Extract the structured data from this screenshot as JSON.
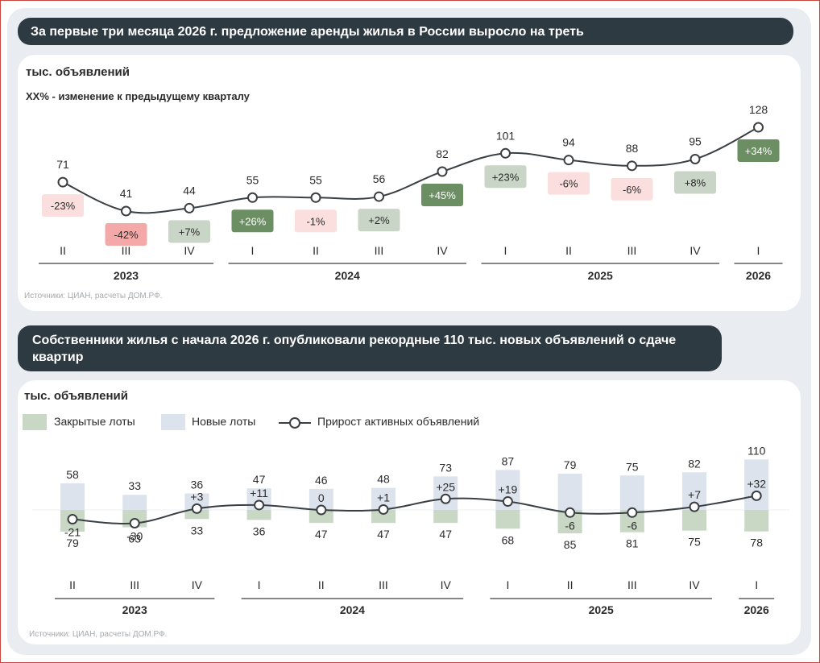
{
  "colors": {
    "line": "#3a3f43",
    "pos_strong": "#6b8f63",
    "pos_light": "#c9d5c6",
    "neg_strong": "#f4a9a8",
    "neg_light": "#fbdede",
    "closed": "#c8d8c4",
    "new": "#dce3ec",
    "banner": "#2e3a42"
  },
  "chart1": {
    "banner": "За первые три месяца 2026 г. предложение аренды жилья в России выросло на треть",
    "unit": "тыс. объявлений",
    "note": "XX% - изменение к предыдущему кварталу",
    "source": "Источники: ЦИАН, расчеты ДОМ.РФ."
  },
  "chart2": {
    "banner": "Собственники жилья с начала 2026 г. опубликовали рекордные 110 тыс. новых объявлений о сдаче квартир",
    "unit": "тыс. объявлений",
    "source": "Источники: ЦИАН, расчеты ДОМ.РФ.",
    "legend": {
      "closed": "Закрытые лоты",
      "new": "Новые лоты",
      "growth": "Прирост активных объявлений"
    }
  },
  "chart_data": [
    {
      "type": "line",
      "title": "За первые три месяца 2026 г. предложение аренды жилья в России выросло на треть",
      "ylabel": "тыс. объявлений",
      "categories": [
        "II",
        "III",
        "IV",
        "I",
        "II",
        "III",
        "IV",
        "I",
        "II",
        "III",
        "IV",
        "I"
      ],
      "year_groups": [
        {
          "label": "2023",
          "from": 0,
          "to": 2
        },
        {
          "label": "2024",
          "from": 3,
          "to": 6
        },
        {
          "label": "2025",
          "from": 7,
          "to": 10
        },
        {
          "label": "2026",
          "from": 11,
          "to": 11
        }
      ],
      "values": [
        71,
        41,
        44,
        55,
        55,
        56,
        82,
        101,
        94,
        88,
        95,
        128
      ],
      "changes": [
        "-23%",
        "-42%",
        "+7%",
        "+26%",
        "-1%",
        "+2%",
        "+45%",
        "+23%",
        "-6%",
        "-6%",
        "+8%",
        "+34%"
      ],
      "change_intensity": [
        "light",
        "strong",
        "light",
        "strong",
        "light",
        "light",
        "strong",
        "light",
        "light",
        "light",
        "light",
        "strong"
      ],
      "ylim": [
        0,
        140
      ]
    },
    {
      "type": "bar",
      "title": "Собственники жилья с начала 2026 г. опубликовали рекордные 110 тыс. новых объявлений о сдаче квартир",
      "ylabel": "тыс. объявлений",
      "categories": [
        "II",
        "III",
        "IV",
        "I",
        "II",
        "III",
        "IV",
        "I",
        "II",
        "III",
        "IV",
        "I"
      ],
      "year_groups": [
        {
          "label": "2023",
          "from": 0,
          "to": 2
        },
        {
          "label": "2024",
          "from": 3,
          "to": 6
        },
        {
          "label": "2025",
          "from": 7,
          "to": 10
        },
        {
          "label": "2026",
          "from": 11,
          "to": 11
        }
      ],
      "series": [
        {
          "name": "Новые лоты",
          "values": [
            58,
            33,
            36,
            47,
            46,
            48,
            73,
            87,
            79,
            75,
            82,
            110
          ]
        },
        {
          "name": "Закрытые лоты",
          "values": [
            79,
            63,
            33,
            36,
            47,
            47,
            47,
            68,
            85,
            81,
            75,
            78
          ]
        },
        {
          "name": "Прирост активных объявлений",
          "values": [
            -21,
            -30,
            3,
            11,
            0,
            1,
            25,
            19,
            -6,
            -6,
            7,
            32
          ],
          "labels": [
            "-21",
            "-30",
            "+3",
            "+11",
            "0",
            "+1",
            "+25",
            "+19",
            "-6",
            "-6",
            "+7",
            "+32"
          ]
        }
      ]
    }
  ]
}
